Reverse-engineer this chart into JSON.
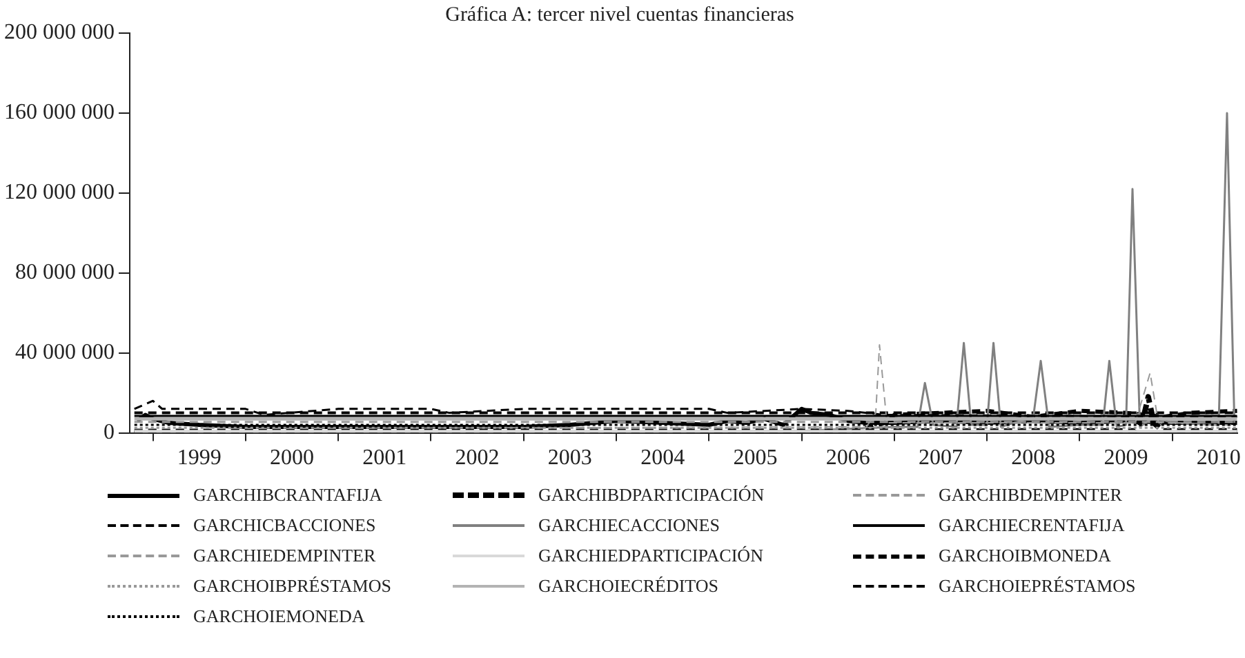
{
  "chart_data": {
    "type": "line",
    "title": "Gráfica A: tercer nivel cuentas financieras",
    "legend": "bottom",
    "grid": false,
    "marker": "none",
    "xlim": [
      1998.75,
      2010.7
    ],
    "xticks": [
      {
        "value": 1999,
        "label": null
      },
      {
        "value": 1999.5,
        "label": "1999"
      },
      {
        "value": 2000,
        "label": null
      },
      {
        "value": 2000.5,
        "label": "2000"
      },
      {
        "value": 2001,
        "label": null
      },
      {
        "value": 2001.5,
        "label": "2001"
      },
      {
        "value": 2002,
        "label": null
      },
      {
        "value": 2002.5,
        "label": "2002"
      },
      {
        "value": 2003,
        "label": null
      },
      {
        "value": 2003.5,
        "label": "2003"
      },
      {
        "value": 2004,
        "label": null
      },
      {
        "value": 2004.5,
        "label": "2004"
      },
      {
        "value": 2005,
        "label": null
      },
      {
        "value": 2005.5,
        "label": "2005"
      },
      {
        "value": 2006,
        "label": null
      },
      {
        "value": 2006.5,
        "label": "2006"
      },
      {
        "value": 2007,
        "label": null
      },
      {
        "value": 2007.5,
        "label": "2007"
      },
      {
        "value": 2008,
        "label": null
      },
      {
        "value": 2008.5,
        "label": "2008"
      },
      {
        "value": 2009,
        "label": null
      },
      {
        "value": 2009.5,
        "label": "2009"
      },
      {
        "value": 2010,
        "label": null
      },
      {
        "value": 2010.5,
        "label": "2010"
      }
    ],
    "ylim": [
      0,
      200000000
    ],
    "yticks": [
      {
        "value": 0,
        "label": "0"
      },
      {
        "value": 40000000,
        "label": "40 000 000"
      },
      {
        "value": 80000000,
        "label": "80 000 000"
      },
      {
        "value": 120000000,
        "label": "120 000 000"
      },
      {
        "value": 160000000,
        "label": "160 000 000"
      },
      {
        "value": 200000000,
        "label": "200 000 000"
      }
    ],
    "series": [
      {
        "name": "GARCHIBCRANTAFIJA",
        "color": "#000000",
        "line_style": "solid",
        "x": [
          1998.83,
          1998.92,
          1999.0,
          1999.17,
          1999.5,
          2000,
          2001,
          2002,
          2003,
          2003.5,
          2004,
          2004.5,
          2005,
          2005.2,
          2005.4,
          2005.6,
          2005.8,
          2006.0,
          2006.1,
          2006.3,
          2006.5,
          2006.7,
          2007,
          2007.5,
          2008,
          2008.5,
          2009,
          2009.5,
          2010,
          2010.7
        ],
        "values": [
          6000000,
          9000000,
          7000000,
          5000000,
          4000000,
          3000000,
          3000000,
          3000000,
          3000000,
          4000000,
          6000000,
          5000000,
          4000000,
          6000000,
          5000000,
          7000000,
          4000000,
          12000000,
          10000000,
          9000000,
          6000000,
          5000000,
          5000000,
          6000000,
          5000000,
          6000000,
          5000000,
          6000000,
          5000000,
          5000000
        ]
      },
      {
        "name": "GARCHIBDPARTICIPACIÓN",
        "color": "#000000",
        "line_style": "dashed",
        "x": [
          1998.8,
          2009.6,
          2009.7,
          2009.74,
          2009.8,
          2009.9,
          2010.7
        ],
        "values": [
          500000,
          1000000,
          10000000,
          18000000,
          5000000,
          1000000,
          1000000
        ]
      },
      {
        "name": "GARCHIBDEMPINTER",
        "color": "#999999",
        "line_style": "dashed",
        "x": [
          1998.8,
          2006.7,
          2006.8,
          2006.84,
          2006.92,
          2007.5,
          2009.6,
          2009.76,
          2009.85,
          2010.5,
          2010.7
        ],
        "values": [
          2000000,
          3000000,
          10000000,
          44000000,
          5000000,
          5000000,
          5000000,
          30000000,
          5000000,
          4000000,
          4000000
        ]
      },
      {
        "name": "GARCHICBACCIONES",
        "color": "#000000",
        "line_style": "dashed",
        "x": [
          1998.8,
          1999.0,
          1999.1,
          1999.5,
          2000.0,
          2000.2,
          2001,
          2002,
          2002.2,
          2003,
          2004,
          2005,
          2005.2,
          2006,
          2006.5,
          2006.9,
          2010.7
        ],
        "values": [
          12000000,
          16000000,
          12000000,
          12000000,
          12000000,
          9000000,
          12000000,
          12000000,
          10000000,
          12000000,
          12000000,
          12000000,
          10000000,
          12000000,
          11000000,
          9000000,
          8000000
        ]
      },
      {
        "name": "GARCHIECACCIONES",
        "color": "#808080",
        "line_style": "solid",
        "x": [
          1998.8,
          2000,
          2002,
          2004,
          2006,
          2007.0,
          2007.25,
          2007.33,
          2007.42,
          2007.67,
          2007.75,
          2007.83,
          2008.0,
          2008.07,
          2008.15,
          2008.5,
          2008.58,
          2008.67,
          2009.0,
          2009.25,
          2009.32,
          2009.4,
          2009.5,
          2009.57,
          2009.65,
          2009.8,
          2010.0,
          2010.5,
          2010.59,
          2010.67
        ],
        "values": [
          500000,
          500000,
          500000,
          500000,
          1000000,
          3000000,
          3000000,
          25000000,
          4000000,
          3000000,
          45000000,
          4000000,
          4000000,
          45000000,
          3000000,
          8000000,
          36000000,
          3000000,
          4000000,
          4000000,
          36000000,
          3000000,
          4000000,
          122000000,
          3000000,
          8000000,
          5000000,
          4000000,
          160000000,
          5000000
        ]
      },
      {
        "name": "GARCHIECRENTAFIJA",
        "color": "#000000",
        "line_style": "solid",
        "x": [
          1998.8,
          2003,
          2006,
          2008,
          2010.7
        ],
        "values": [
          8500000,
          8500000,
          8500000,
          8500000,
          8500000
        ]
      },
      {
        "name": "GARCHIEDEMPINTER",
        "color": "#999999",
        "line_style": "dashed",
        "x": [
          1998.8,
          2004,
          2010.7
        ],
        "values": [
          5500000,
          5500000,
          5500000
        ]
      },
      {
        "name": "GARCHIEDPARTICIPACIÓN",
        "color": "#d9d9d9",
        "line_style": "solid",
        "x": [
          1998.8,
          2004,
          2010.7
        ],
        "values": [
          800000,
          800000,
          800000
        ]
      },
      {
        "name": "GARCHOIBMONEDA",
        "color": "#000000",
        "line_style": "dashed",
        "x": [
          1998.8,
          2006.5,
          2006.9,
          2007.0,
          2007.5,
          2008,
          2008.5,
          2009,
          2009.5,
          2009.9,
          2010.2,
          2010.7
        ],
        "values": [
          0,
          0,
          5000000,
          9000000,
          10000000,
          11000000,
          8000000,
          11000000,
          10000000,
          8000000,
          10000000,
          11000000
        ]
      },
      {
        "name": "GARCHOIBPRÉSTAMOS",
        "color": "#999999",
        "line_style": "dotted",
        "x": [
          1998.8,
          2004,
          2010.7
        ],
        "values": [
          2500000,
          2500000,
          2500000
        ]
      },
      {
        "name": "GARCHOIECRÉDITOS",
        "color": "#b3b3b3",
        "line_style": "solid",
        "x": [
          1998.8,
          2004,
          2008,
          2010.7
        ],
        "values": [
          7000000,
          7000000,
          7000000,
          7000000
        ]
      },
      {
        "name": "GARCHOIEPRÉSTAMOS",
        "color": "#000000",
        "line_style": "dashed",
        "x": [
          1998.8,
          2000,
          2001,
          2002,
          2003,
          2004,
          2005,
          2006,
          2007,
          2008,
          2009,
          2010,
          2010.7
        ],
        "values": [
          10000000,
          10000000,
          10000000,
          10000000,
          10000000,
          10000000,
          10000000,
          10000000,
          10000000,
          10000000,
          10000000,
          10000000,
          10000000
        ]
      },
      {
        "name": "GARCHOIEMONEDA",
        "color": "#000000",
        "line_style": "dotted",
        "x": [
          1998.8,
          2004,
          2010.7
        ],
        "values": [
          4000000,
          4000000,
          4000000
        ]
      }
    ]
  }
}
